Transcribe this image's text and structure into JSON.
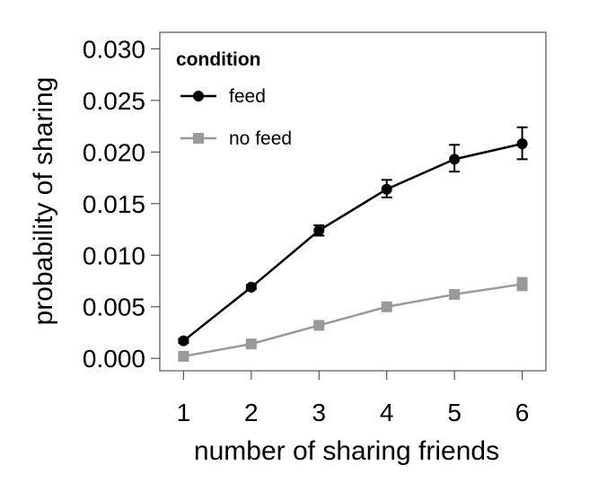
{
  "chart_data": {
    "type": "line",
    "title": "",
    "xlabel": "number of sharing friends",
    "ylabel": "probability of sharing",
    "x": [
      1,
      2,
      3,
      4,
      5,
      6
    ],
    "x_tick_labels": [
      "1",
      "2",
      "3",
      "4",
      "5",
      "6"
    ],
    "y_ticks": [
      0.0,
      0.005,
      0.01,
      0.015,
      0.02,
      0.025,
      0.03
    ],
    "y_tick_labels": [
      "0.000",
      "0.005",
      "0.010",
      "0.015",
      "0.020",
      "0.025",
      "0.030"
    ],
    "xlim": [
      0.65,
      6.35
    ],
    "ylim": [
      -0.0012,
      0.0316
    ],
    "grid": false,
    "legend": {
      "title": "condition",
      "placement": "top-left"
    },
    "series": [
      {
        "name": "feed",
        "color": "#000000",
        "marker": "circle",
        "values": [
          0.0017,
          0.0069,
          0.0124,
          0.0164,
          0.0193,
          0.0208
        ],
        "err_low": [
          0.0015,
          0.0067,
          0.0119,
          0.0156,
          0.0181,
          0.0193
        ],
        "err_high": [
          0.0019,
          0.0071,
          0.0129,
          0.0173,
          0.0207,
          0.0224
        ]
      },
      {
        "name": "no feed",
        "color": "#999999",
        "marker": "square",
        "values": [
          0.0002,
          0.0014,
          0.0032,
          0.005,
          0.0062,
          0.0072
        ],
        "err_low": [
          0.0002,
          0.0013,
          0.003,
          0.0048,
          0.0058,
          0.0066
        ],
        "err_high": [
          0.0003,
          0.0016,
          0.0034,
          0.0052,
          0.0066,
          0.0078
        ]
      }
    ]
  }
}
